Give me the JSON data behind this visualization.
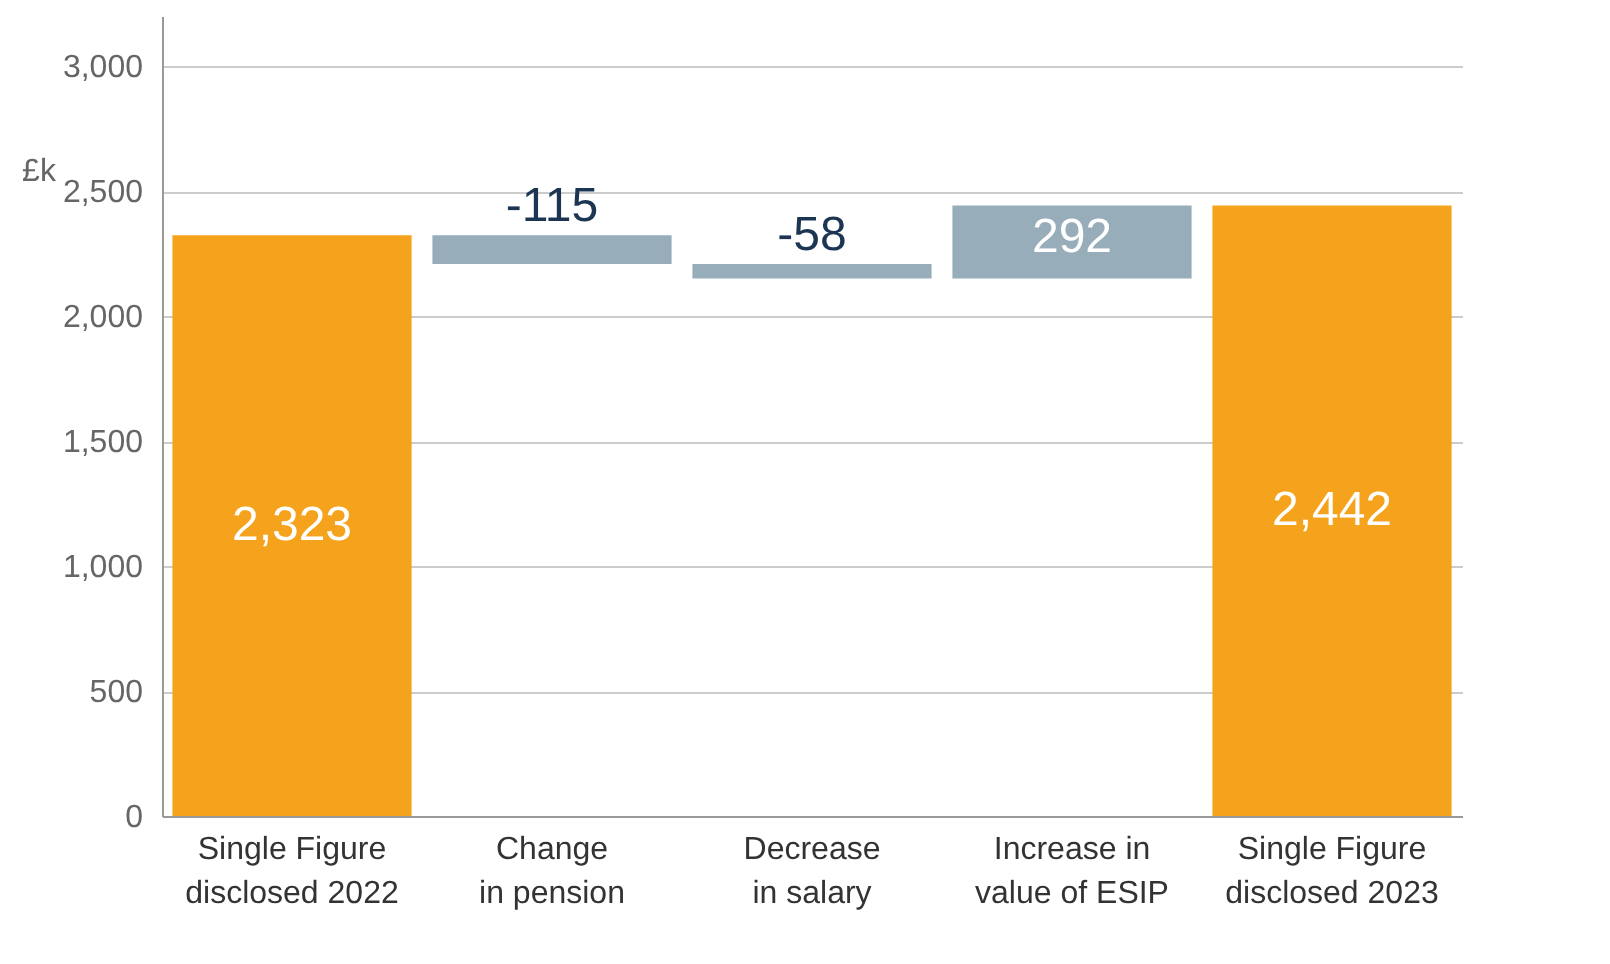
{
  "chart_data": {
    "type": "bar",
    "ylabel": "£k",
    "categories": [
      "Single Figure disclosed 2022",
      "Change in pension",
      "Decrease in salary",
      "Increase in value of ESIP",
      "Single Figure disclosed 2023"
    ],
    "values": [
      2323,
      -115,
      -58,
      292,
      2442
    ],
    "base": [
      0,
      2323,
      2208,
      2150,
      0
    ],
    "colors": [
      "#f5a31c",
      "#97aeba",
      "#97aeba",
      "#97aeba",
      "#f5a31c"
    ],
    "value_labels": [
      "2,323",
      "-115",
      "-58",
      "292",
      "2,442"
    ],
    "ylim": [
      0,
      3200
    ],
    "yticks": [
      0,
      500,
      {
        "value": 1000,
        "label": "1,000"
      },
      {
        "value": 1500,
        "label": "1,500"
      },
      {
        "value": 2000,
        "label": "2,000"
      },
      {
        "value": 2500,
        "label": "2,500"
      },
      {
        "value": 3000,
        "label": "3,000"
      }
    ],
    "grid": "y"
  }
}
